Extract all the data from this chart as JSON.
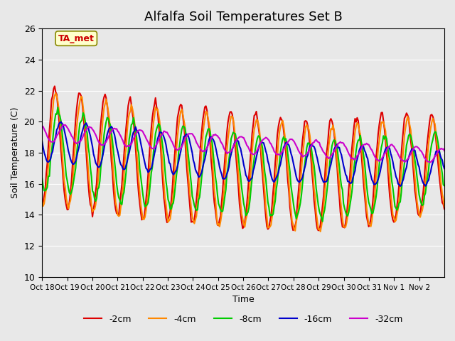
{
  "title": "Alfalfa Soil Temperatures Set B",
  "xlabel": "Time",
  "ylabel": "Soil Temperature (C)",
  "ylim": [
    10,
    26
  ],
  "yticks": [
    10,
    12,
    14,
    16,
    18,
    20,
    22,
    24,
    26
  ],
  "x_tick_labels": [
    "Oct 18",
    "Oct 19",
    "Oct 20",
    "Oct 21",
    "Oct 22",
    "Oct 23",
    "Oct 24",
    "Oct 25",
    "Oct 26",
    "Oct 27",
    "Oct 28",
    "Oct 29",
    "Oct 30",
    "Oct 31",
    "Nov 1",
    "Nov 2"
  ],
  "colors": {
    "-2cm": "#dd0000",
    "-4cm": "#ff8800",
    "-8cm": "#00cc00",
    "-16cm": "#0000cc",
    "-32cm": "#cc00cc"
  },
  "linewidth": 1.5,
  "background_color": "#e8e8e8",
  "plot_bg_color": "#e8e8e8",
  "annotation_text": "TA_met",
  "annotation_color": "#cc0000",
  "annotation_bg": "#ffffcc",
  "title_fontsize": 13
}
